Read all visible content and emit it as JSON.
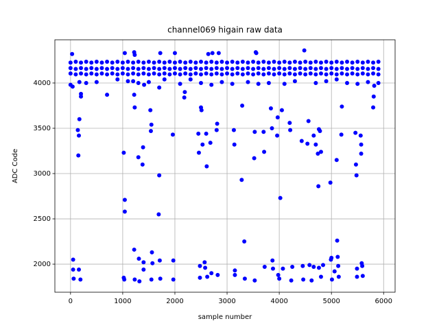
{
  "chart_data": {
    "type": "scatter",
    "title": "channel069 higain raw data",
    "xlabel": "sample number",
    "ylabel": "ADC Code",
    "color": "#0000ff",
    "grid": true,
    "xlim": [
      -300,
      6220
    ],
    "ylim": [
      1690,
      4477
    ],
    "xticks": [
      0,
      1000,
      2000,
      3000,
      4000,
      5000,
      6000
    ],
    "yticks": [
      2000,
      2500,
      3000,
      3500,
      4000
    ],
    "x": [
      0,
      100,
      200,
      300,
      400,
      500,
      600,
      700,
      800,
      900,
      1000,
      1100,
      1200,
      1300,
      1400,
      1500,
      1600,
      1700,
      1800,
      1900,
      2000,
      2100,
      2200,
      2300,
      2400,
      2500,
      2600,
      2700,
      2800,
      2900,
      3000,
      3100,
      3200,
      3300,
      3400,
      3500,
      3600,
      3700,
      3800,
      3900,
      4000,
      4100,
      4200,
      4300,
      4400,
      4500,
      4600,
      4700,
      4800,
      4900,
      5000,
      5100,
      5200,
      5300,
      5400,
      5500,
      5600,
      5700,
      5800,
      5900,
      0,
      100,
      200,
      300,
      400,
      500,
      600,
      700,
      800,
      900,
      1000,
      1100,
      1200,
      1300,
      1400,
      1500,
      1600,
      1700,
      1800,
      1900,
      2000,
      2100,
      2200,
      2300,
      2400,
      2500,
      2600,
      2700,
      2800,
      2900,
      3000,
      3100,
      3200,
      3300,
      3400,
      3500,
      3600,
      3700,
      3800,
      3900,
      4000,
      4100,
      4200,
      4300,
      4400,
      4500,
      4600,
      4700,
      4800,
      4900,
      5000,
      5100,
      5200,
      5300,
      5400,
      5500,
      5600,
      5700,
      5800,
      5900,
      0,
      100,
      200,
      300,
      400,
      500,
      600,
      700,
      800,
      900,
      1000,
      1100,
      1200,
      1300,
      1400,
      1500,
      1600,
      1700,
      1800,
      1900,
      2000,
      2100,
      2200,
      2300,
      2400,
      2500,
      2600,
      2700,
      2800,
      2900,
      3000,
      3100,
      3200,
      3300,
      3400,
      3500,
      3600,
      3700,
      3800,
      3900,
      4000,
      4100,
      4200,
      4300,
      4400,
      4500,
      4600,
      4700,
      4800,
      4900,
      5000,
      5100,
      5200,
      5300,
      5400,
      5500,
      5600,
      5700,
      5800,
      5900,
      0,
      300,
      500,
      900,
      1100,
      1300,
      1500,
      1800,
      2100,
      2300,
      2500,
      2700,
      2900,
      3100,
      3400,
      3600,
      3800,
      4100,
      4300,
      4700,
      4900,
      5100,
      5300,
      5500,
      5700,
      5900,
      30,
      40,
      50,
      50,
      60,
      140,
      150,
      160,
      170,
      160,
      200,
      190,
      200,
      170,
      700,
      1020,
      1030,
      1020,
      1040,
      1040,
      1040,
      1220,
      1230,
      1220,
      1230,
      1220,
      1230,
      1200,
      1300,
      1310,
      1320,
      1380,
      1390,
      1400,
      1400,
      1410,
      1530,
      1540,
      1550,
      1560,
      1570,
      1550,
      1690,
      1700,
      1710,
      1720,
      1700,
      1720,
      1960,
      1970,
      1970,
      2000,
      2180,
      2190,
      2450,
      2460,
      2480,
      2480,
      2500,
      2510,
      2530,
      2570,
      2580,
      2600,
      2610,
      2620,
      2640,
      2680,
      2700,
      2720,
      2800,
      2810,
      2820,
      2840,
      3130,
      3140,
      3150,
      3150,
      3280,
      3290,
      3330,
      3340,
      3520,
      3530,
      3530,
      3560,
      3700,
      3710,
      3720,
      3840,
      3860,
      3870,
      3880,
      3960,
      3970,
      3980,
      4000,
      4020,
      4050,
      4070,
      4200,
      4210,
      4230,
      4250,
      4430,
      4450,
      4460,
      4540,
      4560,
      4580,
      4620,
      4660,
      4660,
      4700,
      4740,
      4750,
      4760,
      4760,
      4780,
      4800,
      4800,
      4840,
      4980,
      4990,
      5000,
      5010,
      5060,
      5100,
      5110,
      5120,
      5130,
      5140,
      5190,
      5200,
      5460,
      5470,
      5480,
      5490,
      5490,
      5560,
      5570,
      5570,
      5580,
      5590,
      5600,
      5800,
      5810,
      5820,
      4480,
      3550
    ],
    "values": [
      4105,
      4095,
      4105,
      4095,
      4105,
      4095,
      4105,
      4095,
      4105,
      4095,
      4105,
      4095,
      4105,
      4095,
      4105,
      4095,
      4105,
      4095,
      4105,
      4095,
      4105,
      4095,
      4105,
      4095,
      4105,
      4095,
      4105,
      4095,
      4105,
      4095,
      4105,
      4095,
      4105,
      4095,
      4105,
      4095,
      4105,
      4095,
      4105,
      4095,
      4105,
      4095,
      4105,
      4095,
      4105,
      4095,
      4105,
      4095,
      4105,
      4095,
      4105,
      4095,
      4105,
      4095,
      4105,
      4095,
      4105,
      4095,
      4105,
      4095,
      4165,
      4155,
      4165,
      4155,
      4165,
      4155,
      4165,
      4155,
      4165,
      4155,
      4165,
      4155,
      4165,
      4155,
      4165,
      4155,
      4165,
      4155,
      4165,
      4155,
      4165,
      4155,
      4165,
      4155,
      4165,
      4155,
      4165,
      4155,
      4165,
      4155,
      4165,
      4155,
      4165,
      4155,
      4165,
      4155,
      4165,
      4155,
      4165,
      4155,
      4165,
      4155,
      4165,
      4155,
      4165,
      4155,
      4165,
      4155,
      4165,
      4155,
      4165,
      4155,
      4165,
      4155,
      4165,
      4155,
      4165,
      4155,
      4165,
      4155,
      4225,
      4235,
      4225,
      4235,
      4225,
      4235,
      4225,
      4235,
      4225,
      4235,
      4225,
      4235,
      4225,
      4235,
      4225,
      4235,
      4225,
      4235,
      4225,
      4235,
      4225,
      4235,
      4225,
      4235,
      4225,
      4235,
      4225,
      4235,
      4225,
      4235,
      4225,
      4235,
      4225,
      4235,
      4225,
      4235,
      4225,
      4235,
      4225,
      4235,
      4225,
      4235,
      4225,
      4235,
      4225,
      4235,
      4225,
      4235,
      4225,
      4235,
      4225,
      4235,
      4225,
      4235,
      4225,
      4235,
      4225,
      4235,
      4225,
      4235,
      3980,
      4000,
      4010,
      4040,
      4020,
      4000,
      4010,
      4040,
      3990,
      4040,
      4000,
      3980,
      4010,
      3990,
      4010,
      3990,
      4000,
      3990,
      4020,
      4000,
      4020,
      4040,
      4000,
      3990,
      4010,
      4000,
      4320,
      3960,
      2050,
      1940,
      1840,
      3480,
      3200,
      3420,
      3600,
      1940,
      3880,
      1830,
      3850,
      4010,
      3870,
      1850,
      1830,
      3230,
      2710,
      2580,
      4330,
      4340,
      4310,
      3870,
      3730,
      2160,
      1830,
      4020,
      3180,
      2060,
      1810,
      3100,
      3290,
      2020,
      1940,
      3980,
      3700,
      3470,
      3540,
      2130,
      2010,
      1830,
      2550,
      2980,
      2040,
      1840,
      3950,
      4330,
      3430,
      2040,
      1830,
      4330,
      3840,
      3900,
      3440,
      3230,
      1980,
      1850,
      3730,
      3700,
      3320,
      2020,
      1960,
      3440,
      3080,
      1860,
      4320,
      3340,
      1900,
      4330,
      3480,
      3550,
      1880,
      4330,
      3480,
      3320,
      1930,
      1880,
      2930,
      3750,
      2250,
      1840,
      3170,
      3460,
      1820,
      4330,
      3460,
      3240,
      1970,
      3720,
      3500,
      2040,
      1950,
      3420,
      3620,
      1880,
      1840,
      2730,
      3700,
      1950,
      3560,
      3480,
      1820,
      1970,
      3360,
      1980,
      1830,
      3330,
      3580,
      1990,
      1820,
      1970,
      3420,
      3320,
      3220,
      2860,
      3490,
      1960,
      3470,
      3240,
      1860,
      1990,
      2900,
      2050,
      2070,
      1830,
      1920,
      3150,
      2260,
      2080,
      1980,
      1860,
      3430,
      3740,
      3450,
      3100,
      2980,
      1950,
      1860,
      3420,
      3320,
      3220,
      2010,
      1980,
      1870,
      3730,
      3850,
      3970,
      4360,
      4340
    ]
  }
}
